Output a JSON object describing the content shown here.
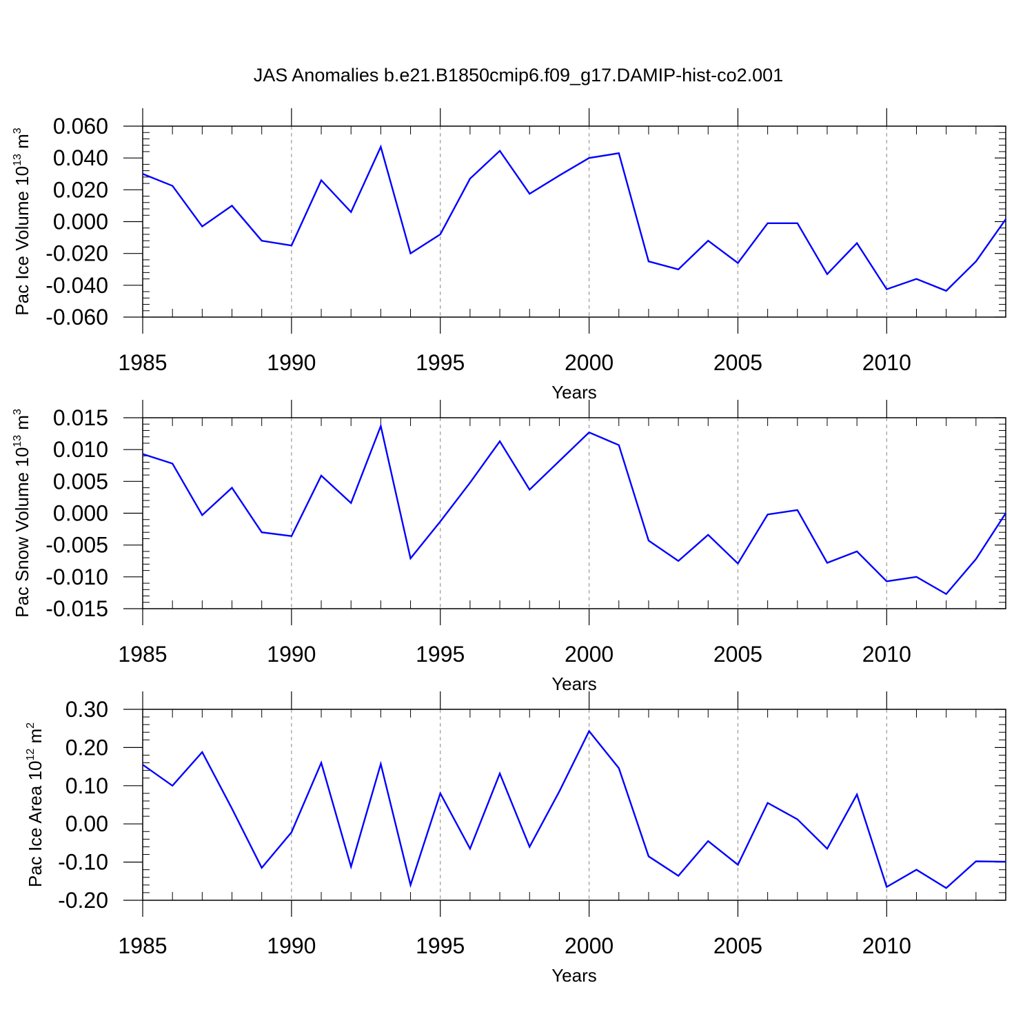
{
  "title": "JAS Anomalies b.e21.B1850cmip6.f09_g17.DAMIP-hist-co2.001",
  "colors": {
    "line": "#0000ff",
    "axis": "#000000",
    "grid": "#999999"
  },
  "chart_data": [
    {
      "type": "line",
      "ylabel": {
        "main": "Pac Ice Volume 10",
        "exp": "13",
        "unit": " m",
        "unit_exp": "3"
      },
      "xlabel": "Years",
      "xlim": [
        1985,
        2014
      ],
      "ylim": [
        -0.06,
        0.06
      ],
      "xticks": [
        1985,
        1990,
        1995,
        2000,
        2005,
        2010
      ],
      "xticklabels": [
        "1985",
        "1990",
        "1995",
        "2000",
        "2005",
        "2010"
      ],
      "yticks": [
        -0.06,
        -0.04,
        -0.02,
        0.0,
        0.02,
        0.04,
        0.06
      ],
      "yticklabels": [
        "-0.060",
        "-0.040",
        "-0.020",
        "0.000",
        "0.020",
        "0.040",
        "0.060"
      ],
      "grid": "dashed vertical at major x ticks",
      "x": [
        1985,
        1986,
        1987,
        1988,
        1989,
        1990,
        1991,
        1992,
        1993,
        1994,
        1995,
        1996,
        1997,
        1998,
        1999,
        2000,
        2001,
        2002,
        2003,
        2004,
        2005,
        2006,
        2007,
        2008,
        2009,
        2010,
        2011,
        2012,
        2013,
        2014
      ],
      "series": [
        {
          "values": [
            0.03,
            0.0225,
            -0.003,
            0.01,
            -0.012,
            -0.015,
            0.026,
            0.006,
            0.047,
            -0.02,
            -0.008,
            0.027,
            0.0445,
            0.0175,
            0.029,
            0.04,
            0.043,
            -0.025,
            -0.03,
            -0.012,
            -0.026,
            -0.001,
            -0.001,
            -0.033,
            -0.0135,
            -0.0425,
            -0.036,
            -0.0435,
            -0.025,
            0.0015
          ]
        }
      ]
    },
    {
      "type": "line",
      "ylabel": {
        "main": "Pac Snow Volume 10",
        "exp": "13",
        "unit": " m",
        "unit_exp": "3"
      },
      "xlabel": "Years",
      "xlim": [
        1985,
        2014
      ],
      "ylim": [
        -0.015,
        0.015
      ],
      "xticks": [
        1985,
        1990,
        1995,
        2000,
        2005,
        2010
      ],
      "xticklabels": [
        "1985",
        "1990",
        "1995",
        "2000",
        "2005",
        "2010"
      ],
      "yticks": [
        -0.015,
        -0.01,
        -0.005,
        0.0,
        0.005,
        0.01,
        0.015
      ],
      "yticklabels": [
        "-0.015",
        "-0.010",
        "-0.005",
        "0.000",
        "0.005",
        "0.010",
        "0.015"
      ],
      "grid": "dashed vertical at major x ticks",
      "x": [
        1985,
        1986,
        1987,
        1988,
        1989,
        1990,
        1991,
        1992,
        1993,
        1994,
        1995,
        1996,
        1997,
        1998,
        1999,
        2000,
        2001,
        2002,
        2003,
        2004,
        2005,
        2006,
        2007,
        2008,
        2009,
        2010,
        2011,
        2012,
        2013,
        2014
      ],
      "series": [
        {
          "values": [
            0.0093,
            0.0078,
            -0.0003,
            0.004,
            -0.003,
            -0.0036,
            0.0059,
            0.0016,
            0.0137,
            -0.0071,
            -0.0013,
            0.0048,
            0.0113,
            0.0037,
            0.0082,
            0.0127,
            0.0107,
            -0.0043,
            -0.0075,
            -0.0034,
            -0.0079,
            -0.0002,
            0.0005,
            -0.0078,
            -0.006,
            -0.0107,
            -0.01,
            -0.0127,
            -0.0072,
            0.0
          ]
        }
      ]
    },
    {
      "type": "line",
      "ylabel": {
        "main": "Pac Ice Area 10",
        "exp": "12",
        "unit": " m",
        "unit_exp": "2"
      },
      "xlabel": "Years",
      "xlim": [
        1985,
        2014
      ],
      "ylim": [
        -0.2,
        0.3
      ],
      "xticks": [
        1985,
        1990,
        1995,
        2000,
        2005,
        2010
      ],
      "xticklabels": [
        "1985",
        "1990",
        "1995",
        "2000",
        "2005",
        "2010"
      ],
      "yticks": [
        -0.2,
        -0.1,
        0.0,
        0.1,
        0.2,
        0.3
      ],
      "yticklabels": [
        "-0.20",
        "-0.10",
        "0.00",
        "0.10",
        "0.20",
        "0.30"
      ],
      "grid": "dashed vertical at major x ticks",
      "x": [
        1985,
        1986,
        1987,
        1988,
        1989,
        1990,
        1991,
        1992,
        1993,
        1994,
        1995,
        1996,
        1997,
        1998,
        1999,
        2000,
        2001,
        2002,
        2003,
        2004,
        2005,
        2006,
        2007,
        2008,
        2009,
        2010,
        2011,
        2012,
        2013,
        2014
      ],
      "series": [
        {
          "values": [
            0.155,
            0.1,
            0.188,
            0.04,
            -0.115,
            -0.022,
            0.16,
            -0.112,
            0.157,
            -0.16,
            0.08,
            -0.065,
            0.132,
            -0.06,
            0.085,
            0.243,
            0.146,
            -0.085,
            -0.136,
            -0.045,
            -0.107,
            0.055,
            0.012,
            -0.065,
            0.077,
            -0.165,
            -0.12,
            -0.168,
            -0.098,
            -0.099
          ]
        }
      ]
    }
  ]
}
